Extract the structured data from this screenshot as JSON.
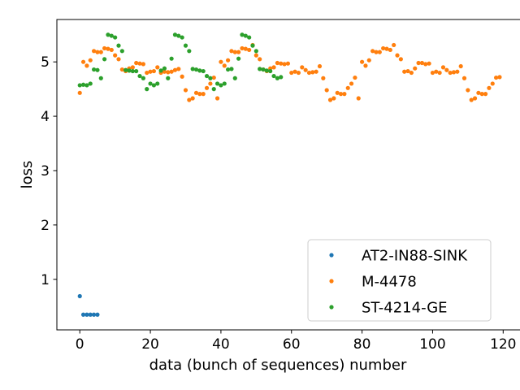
{
  "chart_data": {
    "type": "scatter",
    "title": "",
    "xlabel": "data (bunch of sequences) number",
    "ylabel": "loss",
    "xlim": [
      -6.5,
      125
    ],
    "ylim": [
      0.07,
      5.78
    ],
    "xticks": [
      0,
      20,
      40,
      60,
      80,
      100,
      120
    ],
    "yticks": [
      1,
      2,
      3,
      4,
      5
    ],
    "grid": false,
    "legend_position": "lower-right",
    "series": [
      {
        "name": "AT2-IN88-SINK",
        "color": "#1f77b4",
        "x": [
          0,
          1,
          2,
          3,
          4,
          5
        ],
        "y": [
          0.69,
          0.35,
          0.35,
          0.35,
          0.35,
          0.35
        ]
      },
      {
        "name": "M-4478",
        "color": "#ff7f0e",
        "x": [
          0,
          1,
          2,
          3,
          4,
          5,
          6,
          7,
          8,
          9,
          10,
          11,
          12,
          13,
          14,
          15,
          16,
          17,
          18,
          19,
          20,
          21,
          22,
          23,
          24,
          25,
          26,
          27,
          28,
          29,
          30,
          31,
          32,
          33,
          34,
          35,
          36,
          37,
          38,
          39,
          40,
          41,
          42,
          43,
          44,
          45,
          46,
          47,
          48,
          49,
          50,
          51,
          52,
          53,
          54,
          55,
          56,
          57,
          58,
          59,
          60,
          61,
          62,
          63,
          64,
          65,
          66,
          67,
          68,
          69,
          70,
          71,
          72,
          73,
          74,
          75,
          76,
          77,
          78,
          79,
          80,
          81,
          82,
          83,
          84,
          85,
          86,
          87,
          88,
          89,
          90,
          91,
          92,
          93,
          94,
          95,
          96,
          97,
          98,
          99,
          100,
          101,
          102,
          103,
          104,
          105,
          106,
          107,
          108,
          109,
          110,
          111,
          112,
          113,
          114,
          115,
          116,
          117,
          118,
          119
        ],
        "y": [
          4.43,
          5.0,
          4.93,
          5.03,
          5.2,
          5.18,
          5.18,
          5.25,
          5.24,
          5.22,
          5.12,
          5.05,
          4.86,
          4.83,
          4.88,
          4.9,
          4.98,
          4.97,
          4.96,
          4.8,
          4.82,
          4.83,
          4.9,
          4.8,
          4.82,
          4.81,
          4.82,
          4.85,
          4.87,
          4.73,
          4.48,
          4.3,
          4.33,
          4.43,
          4.41,
          4.41,
          4.52,
          4.6,
          4.71,
          4.33,
          5.0,
          4.93,
          5.03,
          5.2,
          5.18,
          5.18,
          5.25,
          5.24,
          5.22,
          5.31,
          5.12,
          5.05,
          4.86,
          4.83,
          4.88,
          4.9,
          4.98,
          4.97,
          4.96,
          4.97,
          4.8,
          4.82,
          4.8,
          4.9,
          4.85,
          4.8,
          4.81,
          4.82,
          4.92,
          4.7,
          4.48,
          4.3,
          4.33,
          4.43,
          4.41,
          4.41,
          4.52,
          4.6,
          4.71,
          4.33,
          5.0,
          4.93,
          5.03,
          5.2,
          5.18,
          5.18,
          5.25,
          5.24,
          5.22,
          5.31,
          5.12,
          5.05,
          4.82,
          4.83,
          4.8,
          4.88,
          4.98,
          4.98,
          4.96,
          4.97,
          4.8,
          4.82,
          4.8,
          4.9,
          4.85,
          4.8,
          4.81,
          4.82,
          4.92,
          4.7,
          4.48,
          4.3,
          4.33,
          4.43,
          4.41,
          4.41,
          4.52,
          4.6,
          4.71,
          4.72
        ]
      },
      {
        "name": "ST-4214-GE",
        "color": "#2ca02c",
        "x": [
          0,
          1,
          2,
          3,
          4,
          5,
          6,
          7,
          8,
          9,
          10,
          11,
          12,
          13,
          14,
          15,
          16,
          17,
          18,
          19,
          20,
          21,
          22,
          23,
          24,
          25,
          26,
          27,
          28,
          29,
          30,
          31,
          32,
          33,
          34,
          35,
          36,
          37,
          38,
          39,
          40,
          41,
          42,
          43,
          44,
          45,
          46,
          47,
          48,
          49,
          50,
          51,
          52,
          53,
          54,
          55,
          56,
          57
        ],
        "y": [
          4.57,
          4.58,
          4.57,
          4.6,
          4.86,
          4.85,
          4.7,
          5.05,
          5.5,
          5.48,
          5.45,
          5.3,
          5.2,
          4.85,
          4.84,
          4.83,
          4.83,
          4.74,
          4.7,
          4.5,
          4.6,
          4.57,
          4.6,
          4.84,
          4.88,
          4.7,
          5.06,
          5.5,
          5.48,
          5.45,
          5.3,
          5.2,
          4.87,
          4.86,
          4.84,
          4.83,
          4.74,
          4.7,
          4.5,
          4.6,
          4.57,
          4.6,
          4.86,
          4.87,
          4.7,
          5.06,
          5.5,
          5.48,
          5.45,
          5.3,
          5.2,
          4.87,
          4.86,
          4.84,
          4.83,
          4.74,
          4.7,
          4.72
        ]
      }
    ]
  }
}
